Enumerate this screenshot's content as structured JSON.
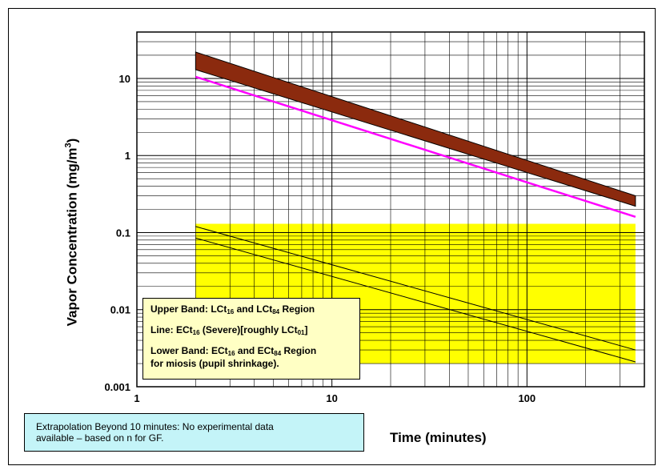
{
  "chart_data": {
    "type": "line",
    "xlabel": "Time (minutes)",
    "ylabel": "Vapor Concentration (mg/m3)",
    "x_scale": "log",
    "y_scale": "log",
    "xlim": [
      1,
      400
    ],
    "ylim": [
      0.001,
      40
    ],
    "x_ticks": [
      {
        "value": 1,
        "label": "1"
      },
      {
        "value": 10,
        "label": "10"
      },
      {
        "value": 100,
        "label": "100"
      }
    ],
    "y_ticks": [
      {
        "value": 0.001,
        "label": "0.001"
      },
      {
        "value": 0.01,
        "label": "0.01"
      },
      {
        "value": 0.1,
        "label": "0.1"
      },
      {
        "value": 1,
        "label": "1"
      },
      {
        "value": 10,
        "label": "10"
      }
    ],
    "grid": true,
    "series": [
      {
        "kind": "band",
        "color": "#8b2a0e",
        "x": [
          2,
          360
        ],
        "upper": [
          22,
          0.3
        ],
        "lower": [
          13,
          0.22
        ]
      },
      {
        "kind": "line",
        "color": "#ff00ff",
        "x": [
          2,
          360
        ],
        "y": [
          10.5,
          0.16
        ]
      },
      {
        "kind": "band",
        "color": "#ffff00",
        "x": [
          2,
          360
        ],
        "upper": [
          0.13,
          0.13
        ],
        "lower": [
          0.002,
          0.002
        ]
      },
      {
        "kind": "line",
        "color": "#000000",
        "x": [
          2,
          360
        ],
        "y": [
          0.12,
          0.003
        ]
      },
      {
        "kind": "line",
        "color": "#000000",
        "x": [
          2,
          360
        ],
        "y": [
          0.085,
          0.0021
        ]
      }
    ],
    "colors": {
      "grid": "#000000",
      "upper_band": "#8b2a0e",
      "line": "#ff00ff",
      "lower_band": "#ffff00",
      "legend_bg": "#ffffc4",
      "note_bg": "#c4f4f8"
    }
  },
  "legend": {
    "row1": {
      "a": "Upper Band:  LCt",
      "b": "16",
      "c": " and LCt",
      "d": "84",
      "e": " Region"
    },
    "row2": {
      "a": "Line:  ECt",
      "b": "16",
      "c": " (Severe)[roughly LCt",
      "d": "01",
      "e": "]"
    },
    "row3": {
      "a": "Lower Band:  ECt",
      "b": "16",
      "c": " and ECt",
      "d": "84",
      "e": " Region"
    },
    "row4": "for miosis (pupil shrinkage)."
  },
  "note": {
    "line1": "Extrapolation Beyond 10 minutes:  No experimental data",
    "line2": "available – based on n for GF."
  }
}
